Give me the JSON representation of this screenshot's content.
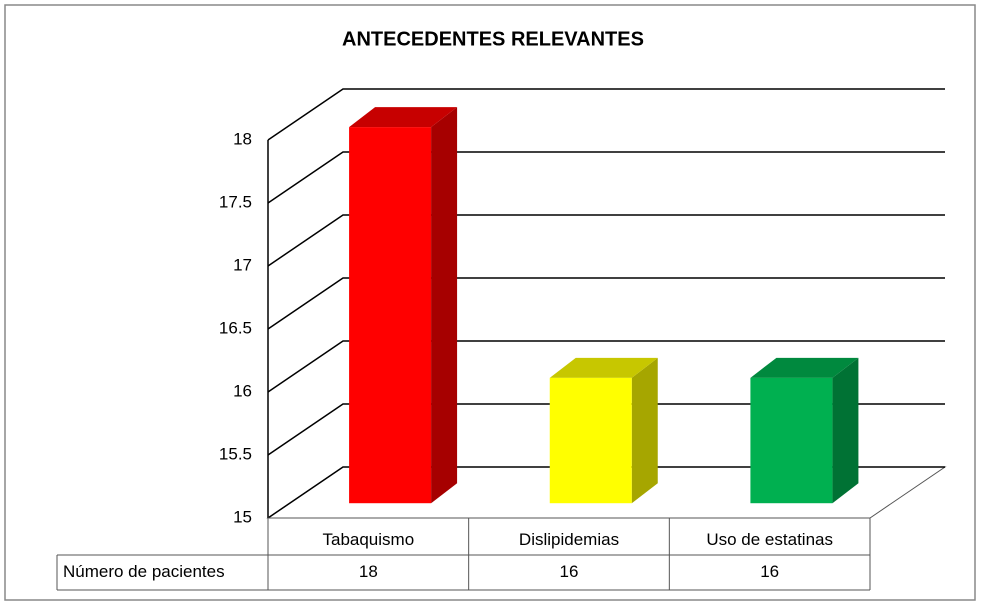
{
  "chart_data": {
    "type": "bar3d",
    "title": "ANTECEDENTES RELEVANTES",
    "categories": [
      "Tabaquismo",
      "Dislipidemias",
      "Uso de estatinas"
    ],
    "series": [
      {
        "name": "Número de pacientes",
        "colors": [
          "#ff0000",
          "#ffff00",
          "#00b050"
        ],
        "values": [
          18,
          16,
          16
        ]
      }
    ],
    "ylim": [
      15,
      18
    ],
    "yticks": [
      15,
      15.5,
      16,
      16.5,
      17,
      17.5,
      18
    ],
    "grid": true,
    "data_table": true
  }
}
